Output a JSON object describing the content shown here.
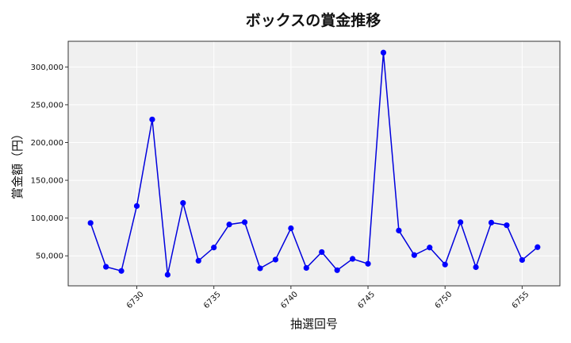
{
  "chart_data": {
    "type": "line",
    "title": "ボックスの賞金推移",
    "xlabel": "抽選回号",
    "ylabel": "賞金額（円）",
    "x": [
      6727,
      6728,
      6729,
      6730,
      6731,
      6732,
      6733,
      6734,
      6735,
      6736,
      6737,
      6738,
      6739,
      6740,
      6741,
      6742,
      6743,
      6744,
      6745,
      6746,
      6747,
      6748,
      6749,
      6750,
      6751,
      6752,
      6753,
      6754,
      6755,
      6756
    ],
    "series": [
      {
        "values": [
          93500,
          35500,
          30000,
          116000,
          230500,
          25000,
          120000,
          43500,
          61000,
          91500,
          94500,
          33500,
          45000,
          86500,
          34000,
          55000,
          31000,
          46000,
          39500,
          319000,
          83500,
          51000,
          61000,
          38500,
          94500,
          35000,
          94000,
          90500,
          44500,
          61500
        ]
      }
    ],
    "xticks": [
      6730,
      6735,
      6740,
      6745,
      6750,
      6755
    ],
    "xtick_labels": [
      "6730",
      "6735",
      "6740",
      "6745",
      "6750",
      "6755"
    ],
    "yticks": [
      50000,
      100000,
      150000,
      200000,
      250000,
      300000
    ],
    "ytick_labels": [
      "50,000",
      "100,000",
      "150,000",
      "200,000",
      "250,000",
      "300,000"
    ],
    "xlim": [
      6725.55,
      6757.45
    ],
    "ylim": [
      10300,
      334000
    ],
    "grid": true,
    "line_color": "#0000dd",
    "marker_color": "#0000ff",
    "plot_background": "#f0f0f0"
  }
}
